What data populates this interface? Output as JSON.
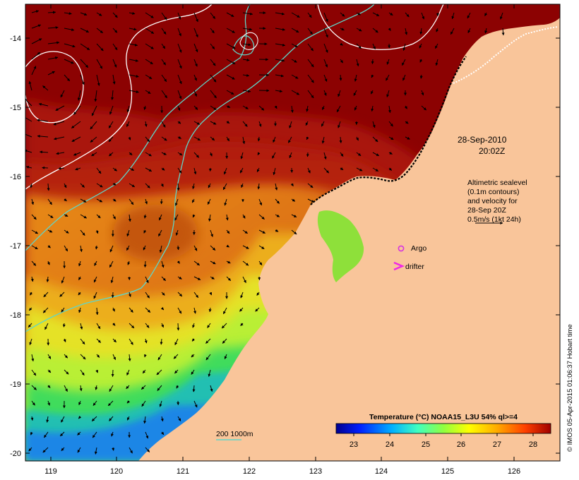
{
  "map": {
    "lon_range": [
      118.6,
      126.7
    ],
    "lat_range": [
      -20.1,
      -13.6
    ],
    "x_ticks": [
      "119",
      "120",
      "121",
      "122",
      "123",
      "124",
      "125",
      "126"
    ],
    "y_ticks": [
      "-14",
      "-15",
      "-16",
      "-17",
      "-18",
      "-19",
      "-20"
    ]
  },
  "annotations": {
    "date_line1": "28-Sep-2010",
    "date_line2": "20:02Z",
    "altimetry_lines": [
      "Altimetric sealevel",
      "(0.1m contours)",
      "and velocity for",
      "28-Sep 20Z",
      "0.5m/s (1kt 24h)"
    ],
    "argo_label": "Argo",
    "drifter_label": "drifter",
    "depth_label": "200  1000m"
  },
  "colorbar": {
    "title": "Temperature (°C) NOAA15_L3U 54% ql>=4",
    "ticks": [
      "23",
      "24",
      "25",
      "26",
      "27",
      "28"
    ],
    "range": [
      22.5,
      28.5
    ]
  },
  "credit": "© IMOS 05-Apr-2015 01:06:37 Hobart time",
  "colors": {
    "land": "#f9c59a",
    "contour": "#ffffff",
    "isobath": "#5fd6c9",
    "argo": "#d633e0",
    "drifter": "#f028e6"
  }
}
